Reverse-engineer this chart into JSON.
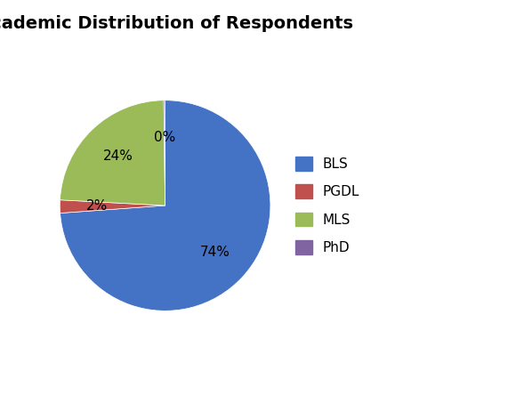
{
  "title": "Academic Distribution of Respondents",
  "labels": [
    "BLS",
    "PGDL",
    "MLS",
    "PhD"
  ],
  "values": [
    74,
    2,
    24,
    0
  ],
  "colors": [
    "#4472C4",
    "#C0504D",
    "#9BBB59",
    "#8064A2"
  ],
  "startangle": 90,
  "title_fontsize": 14,
  "legend_fontsize": 11,
  "autopct_fontsize": 11,
  "background_color": "#ffffff",
  "figsize": [
    5.8,
    4.53
  ],
  "dpi": 100
}
